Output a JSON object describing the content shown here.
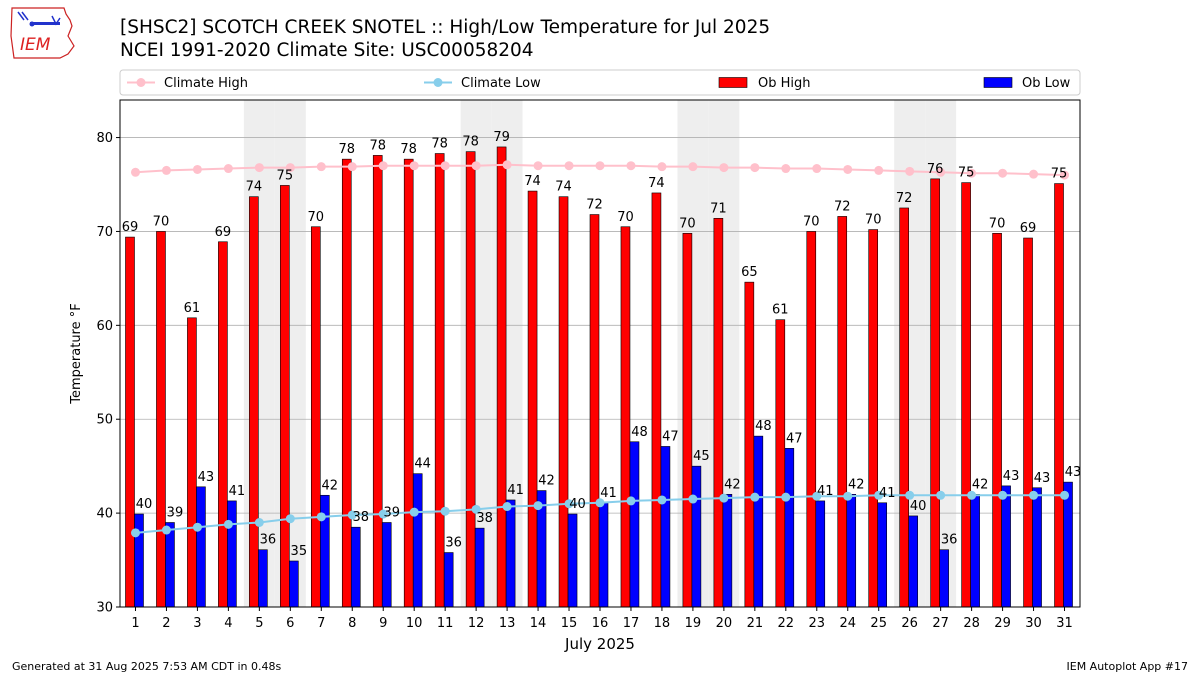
{
  "logo": {
    "text": "IEM"
  },
  "title": {
    "line1": "[SHSC2] SCOTCH CREEK SNOTEL :: High/Low Temperature for Jul 2025",
    "line2": "NCEI 1991-2020 Climate Site: USC00058204"
  },
  "footer": {
    "left": "Generated at 31 Aug 2025 7:53 AM CDT in 0.48s",
    "right": "IEM Autoplot App #17"
  },
  "colors": {
    "ob_high": "#ff0000",
    "ob_low": "#0000ff",
    "climate_high": "#ffc0cb",
    "climate_low": "#87ceeb",
    "weekend_shade": "#eeeeee",
    "grid": "#b0b0b0"
  },
  "chart_data": {
    "type": "bar",
    "xlabel": "July 2025",
    "ylabel": "Temperature °F",
    "ylim": [
      30,
      84
    ],
    "yticks": [
      30,
      40,
      50,
      60,
      70,
      80
    ],
    "grid": "horizontal",
    "legend_position": "top",
    "shaded_days": [
      5,
      6,
      12,
      13,
      19,
      20,
      26,
      27
    ],
    "categories": [
      "1",
      "2",
      "3",
      "4",
      "5",
      "6",
      "7",
      "8",
      "9",
      "10",
      "11",
      "12",
      "13",
      "14",
      "15",
      "16",
      "17",
      "18",
      "19",
      "20",
      "21",
      "22",
      "23",
      "24",
      "25",
      "26",
      "27",
      "28",
      "29",
      "30",
      "31"
    ],
    "series": [
      {
        "name": "Ob High",
        "kind": "bar",
        "values": [
          69.4,
          70,
          60.8,
          68.9,
          73.7,
          74.9,
          70.5,
          77.7,
          78.1,
          77.7,
          78.3,
          78.5,
          79,
          74.3,
          73.7,
          71.8,
          70.5,
          74.1,
          69.8,
          71.4,
          64.6,
          60.6,
          70,
          71.6,
          70.2,
          72.5,
          75.6,
          75.2,
          69.8,
          69.3,
          75.1
        ],
        "labels": [
          "69",
          "70",
          "61",
          "69",
          "74",
          "75",
          "70",
          "78",
          "78",
          "78",
          "78",
          "78",
          "79",
          "74",
          "74",
          "72",
          "70",
          "74",
          "70",
          "71",
          "65",
          "61",
          "70",
          "72",
          "70",
          "72",
          "76",
          "75",
          "70",
          "69",
          "75"
        ]
      },
      {
        "name": "Ob Low",
        "kind": "bar",
        "values": [
          39.9,
          39,
          42.8,
          41.3,
          36.1,
          34.9,
          41.9,
          38.5,
          39,
          44.2,
          35.8,
          38.4,
          41.4,
          42.4,
          39.9,
          41.1,
          47.6,
          47.1,
          45,
          42,
          48.2,
          46.9,
          41.3,
          42,
          41.1,
          39.7,
          36.1,
          42,
          42.9,
          42.7,
          43.3
        ],
        "labels": [
          "40",
          "39",
          "43",
          "41",
          "36",
          "35",
          "42",
          "38",
          "39",
          "44",
          "36",
          "38",
          "41",
          "42",
          "40",
          "41",
          "48",
          "47",
          "45",
          "42",
          "48",
          "47",
          "41",
          "42",
          "41",
          "40",
          "36",
          "42",
          "43",
          "43",
          "43"
        ]
      },
      {
        "name": "Climate High",
        "kind": "line",
        "values": [
          76.3,
          76.5,
          76.6,
          76.7,
          76.8,
          76.8,
          76.9,
          76.9,
          77,
          77,
          77,
          77,
          77.1,
          77,
          77,
          77,
          77,
          76.9,
          76.9,
          76.8,
          76.8,
          76.7,
          76.7,
          76.6,
          76.5,
          76.4,
          76.3,
          76.2,
          76.2,
          76.1,
          76
        ]
      },
      {
        "name": "Climate Low",
        "kind": "line",
        "values": [
          37.9,
          38.2,
          38.5,
          38.8,
          39,
          39.4,
          39.6,
          39.8,
          39.9,
          40.1,
          40.2,
          40.4,
          40.7,
          40.8,
          41,
          41.1,
          41.3,
          41.4,
          41.5,
          41.6,
          41.7,
          41.7,
          41.8,
          41.8,
          41.9,
          41.9,
          41.9,
          41.9,
          41.9,
          41.9,
          41.9
        ]
      }
    ]
  }
}
